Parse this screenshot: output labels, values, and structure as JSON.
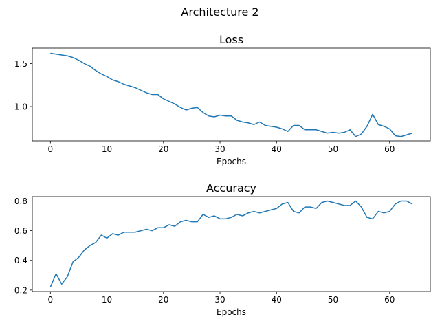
{
  "figure": {
    "suptitle": "Architecture 2"
  },
  "chart_data": [
    {
      "type": "line",
      "title": "Loss",
      "xlabel": "Epochs",
      "ylabel": "",
      "xlim": [
        -3.2,
        67.2
      ],
      "ylim": [
        0.6,
        1.68
      ],
      "xticks": [
        0,
        10,
        20,
        30,
        40,
        50,
        60
      ],
      "yticks": [
        1.0,
        1.5
      ],
      "ytick_labels": [
        "1.0",
        "1.5"
      ],
      "series": [
        {
          "color": "#1f77b4",
          "x": [
            0,
            1,
            2,
            3,
            4,
            5,
            6,
            7,
            8,
            9,
            10,
            11,
            12,
            13,
            14,
            15,
            16,
            17,
            18,
            19,
            20,
            21,
            22,
            23,
            24,
            25,
            26,
            27,
            28,
            29,
            30,
            31,
            32,
            33,
            34,
            35,
            36,
            37,
            38,
            39,
            40,
            41,
            42,
            43,
            44,
            45,
            46,
            47,
            48,
            49,
            50,
            51,
            52,
            53,
            54,
            55,
            56,
            57,
            58,
            59,
            60,
            61,
            62,
            63,
            64
          ],
          "values": [
            1.62,
            1.61,
            1.6,
            1.59,
            1.57,
            1.54,
            1.5,
            1.47,
            1.42,
            1.38,
            1.35,
            1.31,
            1.29,
            1.26,
            1.24,
            1.22,
            1.19,
            1.16,
            1.14,
            1.14,
            1.09,
            1.06,
            1.03,
            0.99,
            0.96,
            0.98,
            0.99,
            0.93,
            0.89,
            0.88,
            0.9,
            0.89,
            0.89,
            0.84,
            0.82,
            0.81,
            0.79,
            0.82,
            0.78,
            0.77,
            0.76,
            0.74,
            0.71,
            0.78,
            0.78,
            0.73,
            0.73,
            0.73,
            0.71,
            0.69,
            0.7,
            0.69,
            0.7,
            0.73,
            0.65,
            0.68,
            0.77,
            0.91,
            0.79,
            0.77,
            0.74,
            0.66,
            0.65,
            0.67,
            0.69
          ]
        }
      ]
    },
    {
      "type": "line",
      "title": "Accuracy",
      "xlabel": "Epochs",
      "ylabel": "",
      "xlim": [
        -3.2,
        67.2
      ],
      "ylim": [
        0.19,
        0.83
      ],
      "xticks": [
        0,
        10,
        20,
        30,
        40,
        50,
        60
      ],
      "yticks": [
        0.2,
        0.4,
        0.6,
        0.8
      ],
      "ytick_labels": [
        "0.2",
        "0.4",
        "0.6",
        "0.8"
      ],
      "series": [
        {
          "color": "#1f77b4",
          "x": [
            0,
            1,
            2,
            3,
            4,
            5,
            6,
            7,
            8,
            9,
            10,
            11,
            12,
            13,
            14,
            15,
            16,
            17,
            18,
            19,
            20,
            21,
            22,
            23,
            24,
            25,
            26,
            27,
            28,
            29,
            30,
            31,
            32,
            33,
            34,
            35,
            36,
            37,
            38,
            39,
            40,
            41,
            42,
            43,
            44,
            45,
            46,
            47,
            48,
            49,
            50,
            51,
            52,
            53,
            54,
            55,
            56,
            57,
            58,
            59,
            60,
            61,
            62,
            63,
            64
          ],
          "values": [
            0.22,
            0.31,
            0.24,
            0.29,
            0.39,
            0.42,
            0.47,
            0.5,
            0.52,
            0.57,
            0.55,
            0.58,
            0.57,
            0.59,
            0.59,
            0.59,
            0.6,
            0.61,
            0.6,
            0.62,
            0.62,
            0.64,
            0.63,
            0.66,
            0.67,
            0.66,
            0.66,
            0.71,
            0.69,
            0.7,
            0.68,
            0.68,
            0.69,
            0.71,
            0.7,
            0.72,
            0.73,
            0.72,
            0.73,
            0.74,
            0.75,
            0.78,
            0.79,
            0.73,
            0.72,
            0.76,
            0.76,
            0.75,
            0.79,
            0.8,
            0.79,
            0.78,
            0.77,
            0.77,
            0.8,
            0.76,
            0.69,
            0.68,
            0.73,
            0.72,
            0.73,
            0.78,
            0.8,
            0.8,
            0.78
          ]
        }
      ]
    }
  ]
}
